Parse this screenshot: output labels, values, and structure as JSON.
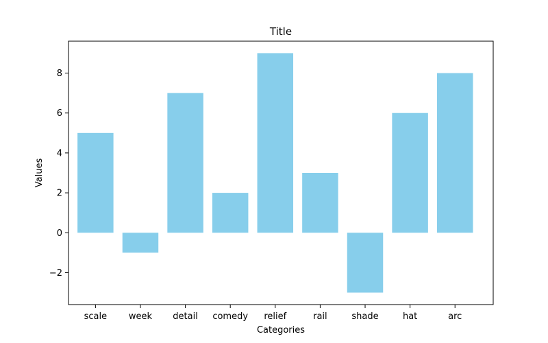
{
  "chart_data": {
    "type": "bar",
    "title": "Title",
    "xlabel": "Categories",
    "ylabel": "Values",
    "categories": [
      "scale",
      "week",
      "detail",
      "comedy",
      "relief",
      "rail",
      "shade",
      "hat",
      "arc"
    ],
    "values": [
      5,
      -1,
      7,
      2,
      9,
      3,
      -3,
      6,
      8
    ],
    "ylim": [
      -3.6,
      9.6
    ],
    "yticks": [
      -2,
      0,
      2,
      4,
      6,
      8
    ],
    "bar_color": "#87ceeb",
    "grid": false,
    "legend": "none"
  }
}
